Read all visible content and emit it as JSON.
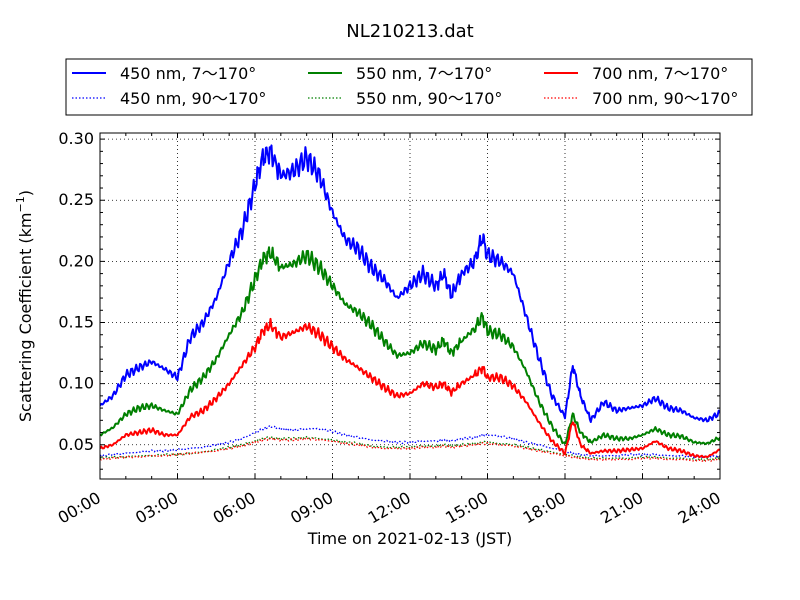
{
  "chart_data": {
    "type": "line",
    "title": "NL210213.dat",
    "xlabel": "Time on 2021-02-13 (JST)",
    "ylabel_main": "Scattering Coefficient (km",
    "ylabel_sup": "−1",
    "ylabel_close": ")",
    "xlim": [
      0,
      24
    ],
    "ylim": [
      0.022,
      0.305
    ],
    "x_ticks": [
      0,
      3,
      6,
      9,
      12,
      15,
      18,
      21,
      24
    ],
    "x_tick_labels": [
      "00:00",
      "03:00",
      "06:00",
      "09:00",
      "12:00",
      "15:00",
      "18:00",
      "21:00",
      "24:00"
    ],
    "y_ticks": [
      0.05,
      0.1,
      0.15,
      0.2,
      0.25,
      0.3
    ],
    "y_tick_labels": [
      "0.05",
      "0.10",
      "0.15",
      "0.20",
      "0.25",
      "0.30"
    ],
    "grid": true,
    "legend_placement": "top (above plot, 3 columns)",
    "x": [
      0,
      0.5,
      1,
      1.5,
      2,
      2.5,
      3,
      3.5,
      4,
      4.5,
      5,
      5.5,
      6,
      6.3,
      6.6,
      7,
      7.5,
      8,
      8.5,
      9,
      9.5,
      10,
      10.5,
      11,
      11.5,
      12,
      12.5,
      13,
      13.3,
      13.6,
      14,
      14.5,
      14.8,
      15,
      15.5,
      16,
      16.5,
      17,
      17.5,
      18,
      18.3,
      18.6,
      19,
      19.5,
      20,
      20.5,
      21,
      21.5,
      22,
      22.5,
      23,
      23.5,
      24
    ],
    "series": [
      {
        "name": "450 nm, 7～170°",
        "color": "#0000ff",
        "style": "solid",
        "values": [
          0.082,
          0.09,
          0.107,
          0.113,
          0.118,
          0.112,
          0.105,
          0.138,
          0.15,
          0.17,
          0.2,
          0.225,
          0.262,
          0.285,
          0.29,
          0.27,
          0.274,
          0.285,
          0.27,
          0.24,
          0.218,
          0.21,
          0.195,
          0.185,
          0.17,
          0.18,
          0.19,
          0.18,
          0.19,
          0.172,
          0.19,
          0.2,
          0.22,
          0.205,
          0.2,
          0.19,
          0.155,
          0.12,
          0.09,
          0.073,
          0.115,
          0.09,
          0.07,
          0.085,
          0.078,
          0.08,
          0.082,
          0.088,
          0.08,
          0.078,
          0.072,
          0.07,
          0.076
        ]
      },
      {
        "name": "450 nm, 90～170°",
        "color": "#0000ff",
        "style": "dotted",
        "values": [
          0.041,
          0.042,
          0.043,
          0.044,
          0.045,
          0.045,
          0.046,
          0.047,
          0.048,
          0.05,
          0.052,
          0.055,
          0.06,
          0.063,
          0.065,
          0.063,
          0.062,
          0.063,
          0.063,
          0.061,
          0.058,
          0.056,
          0.054,
          0.053,
          0.052,
          0.052,
          0.053,
          0.053,
          0.054,
          0.053,
          0.055,
          0.056,
          0.058,
          0.058,
          0.057,
          0.055,
          0.052,
          0.05,
          0.047,
          0.045,
          0.043,
          0.042,
          0.041,
          0.041,
          0.041,
          0.042,
          0.042,
          0.042,
          0.041,
          0.041,
          0.04,
          0.04,
          0.041
        ]
      },
      {
        "name": "550 nm, 7～170°",
        "color": "#008000",
        "style": "solid",
        "values": [
          0.058,
          0.064,
          0.075,
          0.08,
          0.082,
          0.078,
          0.075,
          0.095,
          0.105,
          0.12,
          0.14,
          0.158,
          0.185,
          0.202,
          0.207,
          0.195,
          0.198,
          0.205,
          0.195,
          0.18,
          0.165,
          0.158,
          0.148,
          0.135,
          0.123,
          0.125,
          0.133,
          0.128,
          0.135,
          0.125,
          0.135,
          0.145,
          0.155,
          0.143,
          0.14,
          0.13,
          0.11,
          0.085,
          0.065,
          0.05,
          0.075,
          0.06,
          0.052,
          0.058,
          0.055,
          0.055,
          0.058,
          0.063,
          0.058,
          0.057,
          0.052,
          0.051,
          0.056
        ]
      },
      {
        "name": "550 nm, 90～170°",
        "color": "#008000",
        "style": "dotted",
        "values": [
          0.039,
          0.04,
          0.04,
          0.041,
          0.041,
          0.042,
          0.042,
          0.043,
          0.044,
          0.046,
          0.048,
          0.05,
          0.053,
          0.055,
          0.056,
          0.055,
          0.055,
          0.056,
          0.055,
          0.054,
          0.052,
          0.051,
          0.049,
          0.048,
          0.048,
          0.048,
          0.049,
          0.049,
          0.05,
          0.049,
          0.05,
          0.051,
          0.052,
          0.052,
          0.051,
          0.05,
          0.048,
          0.046,
          0.044,
          0.042,
          0.041,
          0.04,
          0.039,
          0.039,
          0.039,
          0.039,
          0.04,
          0.04,
          0.039,
          0.039,
          0.038,
          0.038,
          0.039
        ]
      },
      {
        "name": "700 nm, 7～170°",
        "color": "#ff0000",
        "style": "solid",
        "values": [
          0.047,
          0.05,
          0.058,
          0.06,
          0.062,
          0.058,
          0.058,
          0.073,
          0.078,
          0.088,
          0.1,
          0.115,
          0.13,
          0.143,
          0.148,
          0.138,
          0.142,
          0.147,
          0.14,
          0.13,
          0.12,
          0.113,
          0.105,
          0.097,
          0.09,
          0.092,
          0.1,
          0.097,
          0.1,
          0.093,
          0.1,
          0.107,
          0.113,
          0.105,
          0.105,
          0.098,
          0.085,
          0.068,
          0.053,
          0.043,
          0.07,
          0.05,
          0.043,
          0.045,
          0.045,
          0.046,
          0.047,
          0.053,
          0.047,
          0.045,
          0.041,
          0.04,
          0.046
        ]
      },
      {
        "name": "700 nm, 90～170°",
        "color": "#ff0000",
        "style": "dotted",
        "values": [
          0.038,
          0.039,
          0.04,
          0.04,
          0.041,
          0.041,
          0.042,
          0.043,
          0.044,
          0.045,
          0.047,
          0.049,
          0.052,
          0.054,
          0.055,
          0.054,
          0.054,
          0.055,
          0.054,
          0.053,
          0.051,
          0.05,
          0.048,
          0.047,
          0.047,
          0.047,
          0.048,
          0.048,
          0.049,
          0.048,
          0.049,
          0.05,
          0.051,
          0.051,
          0.05,
          0.049,
          0.047,
          0.045,
          0.043,
          0.041,
          0.04,
          0.039,
          0.038,
          0.038,
          0.038,
          0.038,
          0.039,
          0.039,
          0.038,
          0.038,
          0.037,
          0.037,
          0.038
        ]
      }
    ]
  }
}
